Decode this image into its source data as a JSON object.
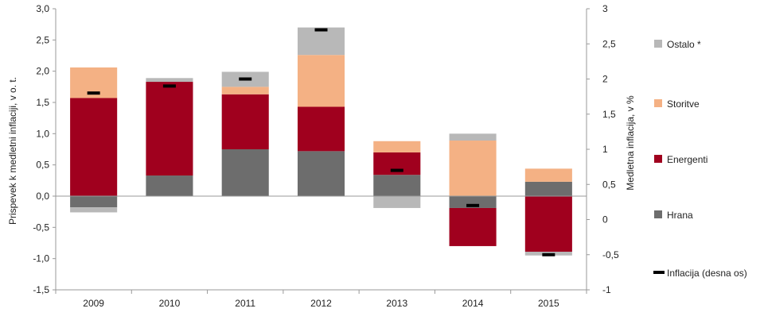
{
  "chart_data": {
    "type": "bar",
    "stacked": true,
    "categories": [
      "2009",
      "2010",
      "2011",
      "2012",
      "2013",
      "2014",
      "2015"
    ],
    "ylabel_left": "Prispevek k medletni inflaciji, v o. t.",
    "ylabel_right": "Medletna inflacija, v %",
    "ylim_left": [
      -1.5,
      3.0
    ],
    "ylim_right": [
      -1,
      3
    ],
    "left_ticks": [
      "3,0",
      "2,5",
      "2,0",
      "1,5",
      "1,0",
      "0,5",
      "0,0",
      "-0,5",
      "-1,0",
      "-1,5"
    ],
    "right_ticks": [
      "3",
      "2,5",
      "2",
      "1,5",
      "1",
      "0,5",
      "0",
      "-0,5",
      "-1"
    ],
    "series": [
      {
        "name": "Hrana",
        "color": "#6d6d6d",
        "values": [
          -0.18,
          0.33,
          0.75,
          0.72,
          0.34,
          -0.19,
          0.23
        ]
      },
      {
        "name": "Energenti",
        "color": "#a0001e",
        "values": [
          1.57,
          1.5,
          0.88,
          0.71,
          0.36,
          -0.61,
          -0.89
        ]
      },
      {
        "name": "Storitve",
        "color": "#f4b184",
        "values": [
          0.49,
          0.0,
          0.12,
          0.83,
          0.18,
          0.89,
          0.21
        ]
      },
      {
        "name": "Ostalo *",
        "color": "#b8b8b8",
        "values": [
          -0.08,
          0.06,
          0.24,
          0.44,
          -0.19,
          0.11,
          -0.06
        ]
      }
    ],
    "inflation": {
      "name": "Inflacija (desna os)",
      "color": "#000000",
      "values": [
        1.8,
        1.9,
        2.0,
        2.7,
        0.7,
        0.2,
        -0.5
      ]
    },
    "legend": [
      "Ostalo *",
      "Storitve",
      "Energenti",
      "Hrana",
      "Inflacija (desna os)"
    ],
    "legend_position": "right",
    "grid": false
  }
}
